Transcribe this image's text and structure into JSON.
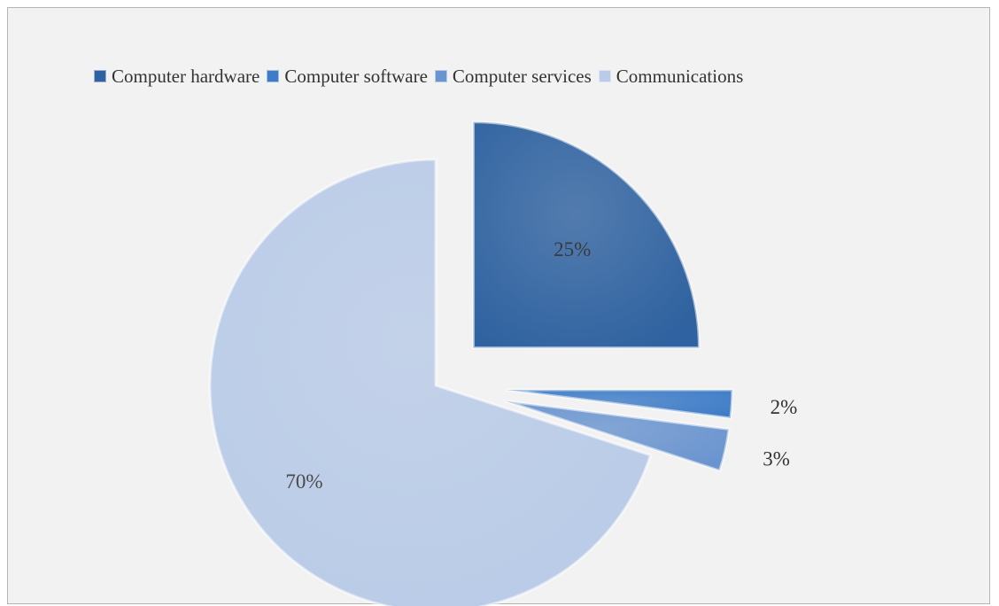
{
  "chart_data": {
    "type": "pie",
    "title": "",
    "legend_position": "top",
    "categories": [
      "Computer hardware",
      "Computer software",
      "Computer services",
      "Communications"
    ],
    "values": [
      25,
      2,
      3,
      70
    ],
    "labels": [
      "25%",
      "2%",
      "3%",
      "70%"
    ],
    "colors": [
      "#2f62a0",
      "#3f7cc7",
      "#6a94cf",
      "#b9cbe7"
    ],
    "exploded": true
  }
}
